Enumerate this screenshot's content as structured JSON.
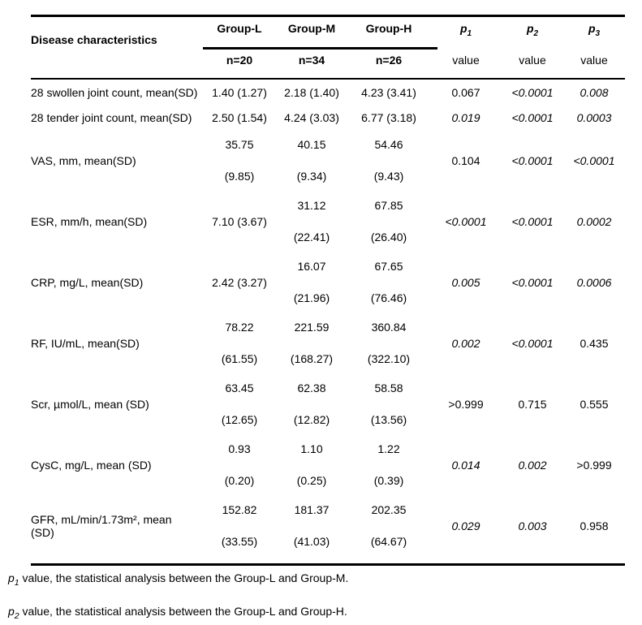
{
  "table": {
    "header": {
      "label_col": "Disease characteristics",
      "group_cols": [
        {
          "name": "Group-L",
          "n": "n=20"
        },
        {
          "name": "Group-M",
          "n": "n=34"
        },
        {
          "name": "Group-H",
          "n": "n=26"
        }
      ],
      "p_cols": [
        {
          "symbol": "p",
          "sub": "1",
          "unit": "value"
        },
        {
          "symbol": "p",
          "sub": "2",
          "unit": "value"
        },
        {
          "symbol": "p",
          "sub": "3",
          "unit": "value"
        }
      ]
    },
    "rows": [
      {
        "label": "28 swollen joint count, mean(SD)",
        "gL": [
          "1.40 (1.27)"
        ],
        "gM": [
          "2.18 (1.40)"
        ],
        "gH": [
          "4.23 (3.41)"
        ],
        "p1": {
          "text": "0.067",
          "italic": false
        },
        "p2": {
          "text": "<0.0001",
          "italic": true
        },
        "p3": {
          "text": "0.008",
          "italic": true
        }
      },
      {
        "label": "28 tender joint count, mean(SD)",
        "gL": [
          "2.50 (1.54)"
        ],
        "gM": [
          "4.24 (3.03)"
        ],
        "gH": [
          "6.77 (3.18)"
        ],
        "p1": {
          "text": "0.019",
          "italic": true
        },
        "p2": {
          "text": "<0.0001",
          "italic": true
        },
        "p3": {
          "text": "0.0003",
          "italic": true
        }
      },
      {
        "label": "VAS, mm, mean(SD)",
        "gL": [
          "35.75",
          "(9.85)"
        ],
        "gM": [
          "40.15",
          "(9.34)"
        ],
        "gH": [
          "54.46",
          "(9.43)"
        ],
        "p1": {
          "text": "0.104",
          "italic": false
        },
        "p2": {
          "text": "<0.0001",
          "italic": true
        },
        "p3": {
          "text": "<0.0001",
          "italic": true
        }
      },
      {
        "label": "ESR, mm/h, mean(SD)",
        "gL": [
          "7.10 (3.67)"
        ],
        "gM": [
          "31.12",
          "(22.41)"
        ],
        "gH": [
          "67.85",
          "(26.40)"
        ],
        "p1": {
          "text": "<0.0001",
          "italic": true
        },
        "p2": {
          "text": "<0.0001",
          "italic": true
        },
        "p3": {
          "text": "0.0002",
          "italic": true
        }
      },
      {
        "label": "CRP, mg/L, mean(SD)",
        "gL": [
          "2.42 (3.27)"
        ],
        "gM": [
          "16.07",
          "(21.96)"
        ],
        "gH": [
          "67.65",
          "(76.46)"
        ],
        "p1": {
          "text": "0.005",
          "italic": true
        },
        "p2": {
          "text": "<0.0001",
          "italic": true
        },
        "p3": {
          "text": "0.0006",
          "italic": true
        }
      },
      {
        "label": "RF, IU/mL, mean(SD)",
        "gL": [
          "78.22",
          "(61.55)"
        ],
        "gM": [
          "221.59",
          "(168.27)"
        ],
        "gH": [
          "360.84",
          "(322.10)"
        ],
        "p1": {
          "text": "0.002",
          "italic": true
        },
        "p2": {
          "text": "<0.0001",
          "italic": true
        },
        "p3": {
          "text": "0.435",
          "italic": false
        }
      },
      {
        "label": "Scr, µmol/L, mean (SD)",
        "gL": [
          "63.45",
          "(12.65)"
        ],
        "gM": [
          "62.38",
          "(12.82)"
        ],
        "gH": [
          "58.58",
          "(13.56)"
        ],
        "p1": {
          "text": ">0.999",
          "italic": false
        },
        "p2": {
          "text": "0.715",
          "italic": false
        },
        "p3": {
          "text": "0.555",
          "italic": false
        }
      },
      {
        "label": "CysC, mg/L, mean (SD)",
        "gL": [
          "0.93",
          "(0.20)"
        ],
        "gM": [
          "1.10",
          "(0.25)"
        ],
        "gH": [
          "1.22",
          "(0.39)"
        ],
        "p1": {
          "text": "0.014",
          "italic": true
        },
        "p2": {
          "text": "0.002",
          "italic": true
        },
        "p3": {
          "text": ">0.999",
          "italic": false
        }
      },
      {
        "label": "GFR, mL/min/1.73m², mean (SD)",
        "gL": [
          "152.82",
          "(33.55)"
        ],
        "gM": [
          "181.37",
          "(41.03)"
        ],
        "gH": [
          "202.35",
          "(64.67)"
        ],
        "p1": {
          "text": "0.029",
          "italic": true
        },
        "p2": {
          "text": "0.003",
          "italic": true
        },
        "p3": {
          "text": "0.958",
          "italic": false
        }
      }
    ],
    "footnotes": [
      {
        "symbol": "p",
        "sub": "1",
        "text": " value, the statistical analysis between the Group-L and Group-M."
      },
      {
        "symbol": "p",
        "sub": "2",
        "text": " value, the statistical analysis between the Group-L and Group-H."
      }
    ]
  },
  "colors": {
    "text": "#000000",
    "background": "#ffffff",
    "rule": "#000000"
  }
}
